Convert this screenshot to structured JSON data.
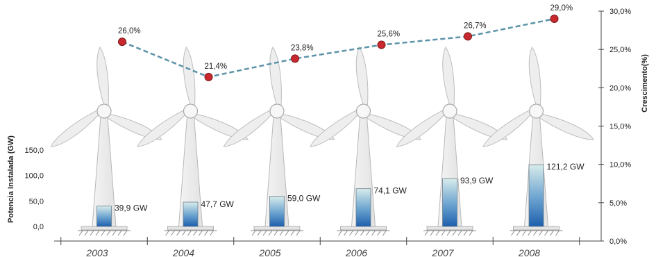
{
  "chart_data": {
    "type": "bar",
    "categories": [
      "2003",
      "2004",
      "2005",
      "2006",
      "2007",
      "2008"
    ],
    "series": [
      {
        "values": [
          39.9,
          47.7,
          59.0,
          74.1,
          93.9,
          121.2
        ],
        "labels": [
          "39,9 GW",
          "47,7 GW",
          "59,0 GW",
          "74,1 GW",
          "93,9 GW",
          "121,2 GW"
        ],
        "axis": "left",
        "type": "bar",
        "color": "#2a6db8"
      },
      {
        "values": [
          26.0,
          21.4,
          23.8,
          25.6,
          26.7,
          29.0
        ],
        "labels": [
          "26,0%",
          "21,4%",
          "23,8%",
          "25,6%",
          "26,7%",
          "29,0%"
        ],
        "axis": "right",
        "type": "line",
        "color": "#c8282e",
        "line_color": "#5b93a8"
      }
    ],
    "ylabel": "Potencia Instalada (GW)",
    "y2label": "Crescimento(%)",
    "ylim": [
      0,
      150
    ],
    "y2lim": [
      0,
      30
    ],
    "yticks": [
      "0,0",
      "50,0",
      "100,0",
      "150,0"
    ],
    "y2ticks": [
      "0,0%",
      "5,0%",
      "10,0%",
      "15,0%",
      "20,0%",
      "25,0%",
      "30,0%"
    ],
    "grid": false
  }
}
